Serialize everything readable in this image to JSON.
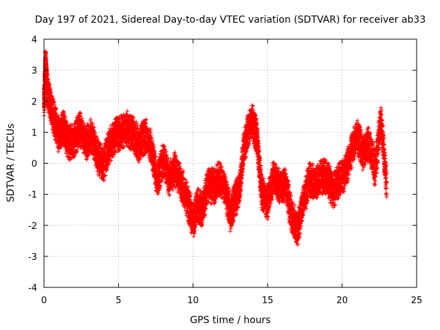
{
  "chart_data": {
    "type": "scatter",
    "title": "Day 197 of 2021, Sidereal Day-to-day VTEC variation (SDTVAR) for receiver ab33",
    "xlabel": "GPS time / hours",
    "ylabel": "SDTVAR / TECUs",
    "xlim": [
      0,
      25
    ],
    "ylim": [
      -4,
      4
    ],
    "xticks": [
      "0",
      "5",
      "10",
      "15",
      "20",
      "25"
    ],
    "yticks": [
      "-4",
      "-3",
      "-2",
      "-1",
      "0",
      "1",
      "2",
      "3",
      "4"
    ],
    "grid": true,
    "marker": "+",
    "color": "#ff0000",
    "x_extent": [
      0.0,
      23.0
    ],
    "series": [
      {
        "name": "SDTVAR",
        "description": "dense band of points; key (x, y) anchors approximated from the plot",
        "x": [
          0.0,
          0.1,
          0.2,
          0.4,
          0.7,
          1.0,
          1.3,
          1.6,
          2.0,
          2.4,
          2.8,
          3.2,
          3.6,
          4.0,
          4.4,
          4.8,
          5.2,
          5.6,
          6.0,
          6.4,
          6.8,
          7.2,
          7.6,
          8.0,
          8.4,
          8.8,
          9.2,
          9.6,
          10.0,
          10.3,
          10.6,
          11.0,
          11.4,
          11.8,
          12.2,
          12.5,
          12.8,
          13.1,
          13.4,
          13.7,
          14.0,
          14.3,
          14.6,
          15.0,
          15.4,
          15.8,
          16.2,
          16.6,
          17.0,
          17.4,
          17.8,
          18.2,
          18.6,
          19.0,
          19.4,
          19.8,
          20.2,
          20.6,
          21.0,
          21.4,
          21.8,
          22.2,
          22.6,
          23.0
        ],
        "y": [
          1.8,
          3.2,
          2.4,
          2.0,
          1.5,
          1.0,
          1.3,
          0.8,
          0.6,
          1.0,
          0.5,
          0.8,
          0.3,
          0.1,
          0.7,
          1.0,
          0.9,
          1.0,
          0.8,
          0.5,
          1.0,
          0.6,
          -0.4,
          0.2,
          -0.6,
          -0.3,
          -0.8,
          -1.2,
          -1.8,
          -1.2,
          -1.4,
          -0.6,
          -0.8,
          -0.6,
          -1.0,
          -1.8,
          -1.2,
          -0.8,
          0.6,
          1.2,
          1.5,
          0.8,
          -1.0,
          -1.4,
          -0.6,
          -0.8,
          -0.6,
          -1.5,
          -2.0,
          -1.2,
          -0.6,
          -0.8,
          -0.6,
          -0.5,
          -0.8,
          -0.4,
          -0.2,
          0.4,
          0.8,
          0.2,
          0.5,
          -0.2,
          1.5,
          -0.6
        ]
      }
    ]
  }
}
